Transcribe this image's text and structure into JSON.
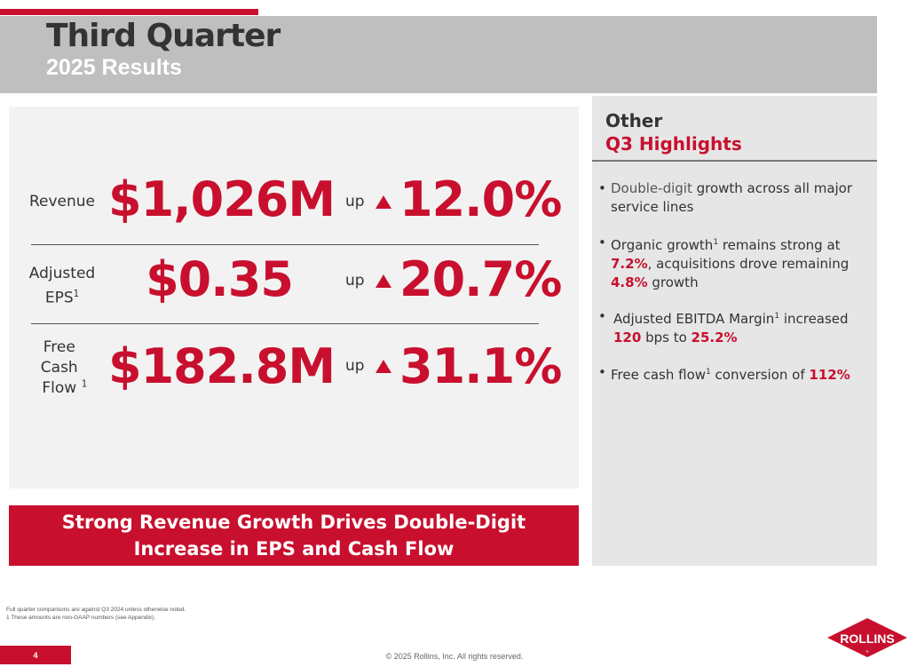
{
  "header": {
    "title": "Third Quarter",
    "subtitle": "2025 Results"
  },
  "metrics": [
    {
      "label": "Revenue",
      "sup": "",
      "value": "$1,026M",
      "direction": "up",
      "change": "12.0%"
    },
    {
      "label": "Adjusted EPS",
      "sup": "1",
      "value": "$0.35",
      "direction": "up",
      "change": "20.7%"
    },
    {
      "label": "Free Cash Flow",
      "sup": "1",
      "value": "$182.8M",
      "direction": "up",
      "change": "31.1%"
    }
  ],
  "highlights": {
    "title": "Other",
    "subtitle": "Q3 Highlights",
    "b1": {
      "a": "Double-digit",
      "b": " growth across all major service lines"
    },
    "b2": {
      "a": "Organic growth",
      "sup": "1",
      "b": " remains strong at ",
      "c": "7.2%",
      "d": ", acquisitions drove remaining ",
      "e": "4.8%",
      "f": " growth"
    },
    "b3": {
      "a": "Adjusted EBITDA Margin",
      "sup": "1",
      "b": " increased ",
      "c": "120",
      "d": " bps to ",
      "e": "25.2%"
    },
    "b4": {
      "a": "Free cash flow",
      "sup": "1",
      "b": " conversion of ",
      "c": "112%"
    }
  },
  "banner": "Strong Revenue Growth Drives Double-Digit Increase in EPS and Cash Flow",
  "footnotes": [
    "Full quarter comparisons are against Q3 2024 unless otherwise noted.",
    "1 These amounts are non-GAAP numbers (see Appendix)."
  ],
  "page_number": "4",
  "copyright": "© 2025 Rollins, Inc. All rights reserved.",
  "logo": {
    "text": "ROLLINS",
    "color": "#c8102e"
  },
  "colors": {
    "accent": "#c8102e",
    "header_bg": "#bfbfbf"
  }
}
